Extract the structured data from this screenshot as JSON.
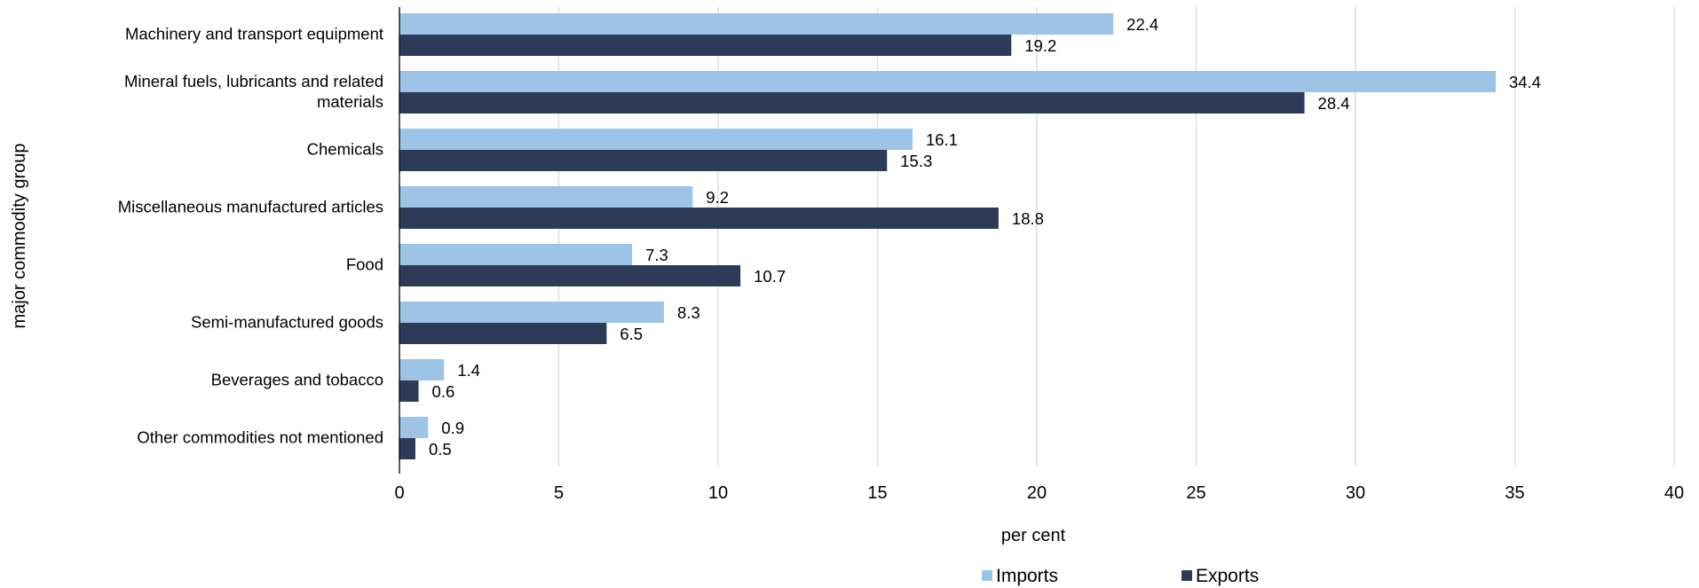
{
  "chart_data": {
    "type": "bar",
    "orientation": "horizontal",
    "categories": [
      "Machinery and transport equipment",
      "Mineral fuels, lubricants and related materials",
      "Chemicals",
      "Miscellaneous manufactured articles",
      "Food",
      "Semi-manufactured goods",
      "Beverages and tobacco",
      "Other commodities not mentioned"
    ],
    "category_lines": [
      [
        "Machinery and transport equipment"
      ],
      [
        "Mineral fuels, lubricants and related",
        "materials"
      ],
      [
        "Chemicals"
      ],
      [
        "Miscellaneous manufactured articles"
      ],
      [
        "Food"
      ],
      [
        "Semi-manufactured goods"
      ],
      [
        "Beverages and tobacco"
      ],
      [
        "Other commodities not mentioned"
      ]
    ],
    "series": [
      {
        "name": "Imports",
        "color": "#9dc3e6",
        "values": [
          22.4,
          34.4,
          16.1,
          9.2,
          7.3,
          8.3,
          1.4,
          0.9
        ]
      },
      {
        "name": "Exports",
        "color": "#2e3b58",
        "values": [
          19.2,
          28.4,
          15.3,
          18.8,
          10.7,
          6.5,
          0.6,
          0.5
        ]
      }
    ],
    "value_labels": [
      [
        "22.4",
        "34.4",
        "16.1",
        "9.2",
        "7.3",
        "8.3",
        "1.4",
        "0.9"
      ],
      [
        "19.2",
        "28.4",
        "15.3",
        "18.8",
        "10.7",
        "6.5",
        "0.6",
        "0.5"
      ]
    ],
    "xlabel": "per cent",
    "ylabel": "major commodity group",
    "xlim": [
      0,
      40
    ],
    "xticks": [
      0,
      5,
      10,
      15,
      20,
      25,
      30,
      35,
      40
    ],
    "xtick_labels": [
      "0",
      "5",
      "10",
      "15",
      "20",
      "25",
      "30",
      "35",
      "40"
    ],
    "grid": true,
    "grid_color": "#d9d9d9",
    "legend": "bottom-center"
  }
}
